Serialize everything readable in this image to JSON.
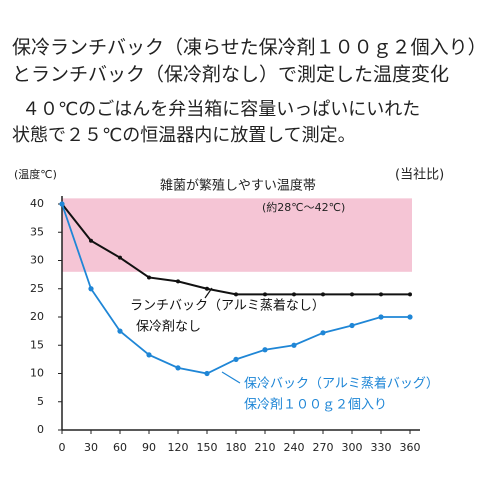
{
  "chart_data": {
    "type": "line",
    "title": [
      "保冷ランチバック（凍らせた保冷剤１００ｇ２個入り）",
      "とランチバック（保冷剤なし）で測定した温度変化"
    ],
    "subtitle": [
      "４０℃のごはんを弁当箱に容量いっぱいにいれた",
      "状態で２５℃の恒温器内に放置して測定。"
    ],
    "y_label": "(温度℃)",
    "source_note": "(当社比)",
    "band": {
      "range": [
        28,
        41
      ],
      "color": "#f5c5d5",
      "label": "雑菌が繁殖しやすい温度帯",
      "sublabel": "(約28℃〜42℃)"
    },
    "x": [
      0,
      30,
      60,
      90,
      120,
      150,
      180,
      210,
      240,
      270,
      300,
      330,
      360
    ],
    "series": [
      {
        "name": "ランチバック（アルミ蒸着なし）",
        "subname": "保冷剤なし",
        "color": "#111111",
        "values": [
          40,
          33.5,
          30.5,
          27,
          26.3,
          25,
          24,
          24,
          24,
          24,
          24,
          24,
          24
        ]
      },
      {
        "name": "保冷バック（アルミ蒸着バッグ）",
        "subname": "保冷剤１００ｇ２個入り",
        "color": "#1f86d6",
        "values": [
          40,
          25,
          17.5,
          13.3,
          11,
          10,
          12.5,
          14.2,
          15,
          17.2,
          18.5,
          20,
          20
        ]
      }
    ],
    "xlim": [
      0,
      360
    ],
    "ylim": [
      0,
      40
    ],
    "xticks": [
      0,
      30,
      60,
      90,
      120,
      150,
      180,
      210,
      240,
      270,
      300,
      330,
      360
    ],
    "yticks": [
      0,
      5,
      10,
      15,
      20,
      25,
      30,
      35,
      40
    ]
  }
}
